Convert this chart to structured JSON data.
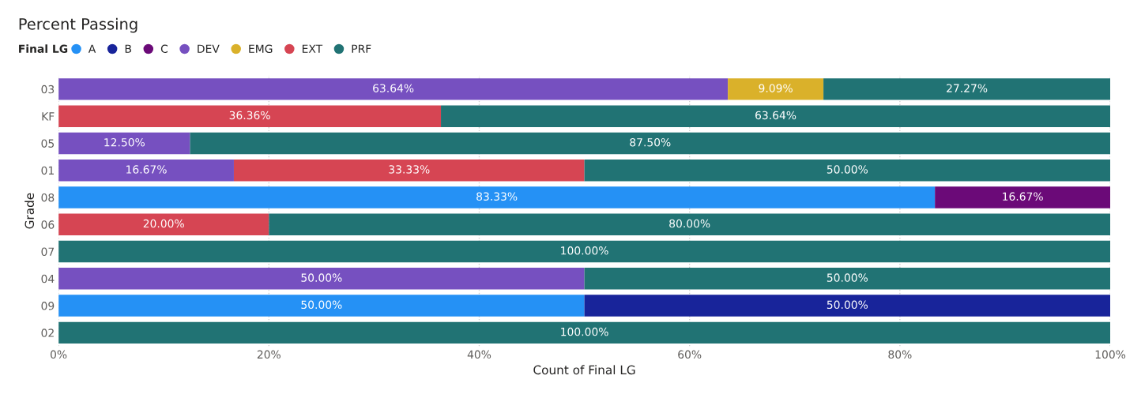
{
  "chart_data": {
    "type": "bar",
    "orientation": "horizontal",
    "stacked": true,
    "title": "Percent Passing",
    "xlabel": "Count of Final LG",
    "ylabel": "Grade",
    "legend_title": "Final LG",
    "legend": "top left",
    "grid": "x",
    "categories": [
      "03",
      "KF",
      "05",
      "01",
      "08",
      "06",
      "07",
      "04",
      "09",
      "02"
    ],
    "xlim": [
      0,
      100
    ],
    "xticks": [
      {
        "value": 0,
        "label": "0%"
      },
      {
        "value": 20,
        "label": "20%"
      },
      {
        "value": 40,
        "label": "40%"
      },
      {
        "value": 60,
        "label": "60%"
      },
      {
        "value": 80,
        "label": "80%"
      },
      {
        "value": 100,
        "label": "100%"
      }
    ],
    "series": [
      {
        "name": "A",
        "color": "#2591f5",
        "values": [
          null,
          null,
          null,
          null,
          83.33,
          null,
          null,
          null,
          50,
          null
        ],
        "value_labels": [
          null,
          null,
          null,
          null,
          "83.33%",
          null,
          null,
          null,
          "50.00%",
          null
        ]
      },
      {
        "name": "B",
        "color": "#18249a",
        "values": [
          null,
          null,
          null,
          null,
          null,
          null,
          null,
          null,
          50,
          null
        ],
        "value_labels": [
          null,
          null,
          null,
          null,
          null,
          null,
          null,
          null,
          "50.00%",
          null
        ]
      },
      {
        "name": "C",
        "color": "#6b0a78",
        "values": [
          null,
          null,
          null,
          null,
          16.67,
          null,
          null,
          null,
          null,
          null
        ],
        "value_labels": [
          null,
          null,
          null,
          null,
          "16.67%",
          null,
          null,
          null,
          null,
          null
        ]
      },
      {
        "name": "DEV",
        "color": "#7650c0",
        "values": [
          63.64,
          null,
          12.5,
          16.67,
          null,
          null,
          null,
          50,
          null,
          null
        ],
        "value_labels": [
          "63.64%",
          null,
          "12.50%",
          "16.67%",
          null,
          null,
          null,
          "50.00%",
          null,
          null
        ]
      },
      {
        "name": "EMG",
        "color": "#dab12a",
        "values": [
          9.09,
          null,
          null,
          null,
          null,
          null,
          null,
          null,
          null,
          null
        ],
        "value_labels": [
          "9.09%",
          null,
          null,
          null,
          null,
          null,
          null,
          null,
          null,
          null
        ]
      },
      {
        "name": "EXT",
        "color": "#d64553",
        "values": [
          null,
          36.36,
          null,
          33.33,
          null,
          20,
          null,
          null,
          null,
          null
        ],
        "value_labels": [
          null,
          "36.36%",
          null,
          "33.33%",
          null,
          "20.00%",
          null,
          null,
          null,
          null
        ]
      },
      {
        "name": "PRF",
        "color": "#217374",
        "values": [
          27.27,
          63.64,
          87.5,
          50,
          null,
          80,
          100,
          50,
          null,
          100
        ],
        "value_labels": [
          "27.27%",
          "63.64%",
          "87.50%",
          "50.00%",
          null,
          "80.00%",
          "100.00%",
          "50.00%",
          null,
          "100.00%"
        ]
      }
    ]
  }
}
